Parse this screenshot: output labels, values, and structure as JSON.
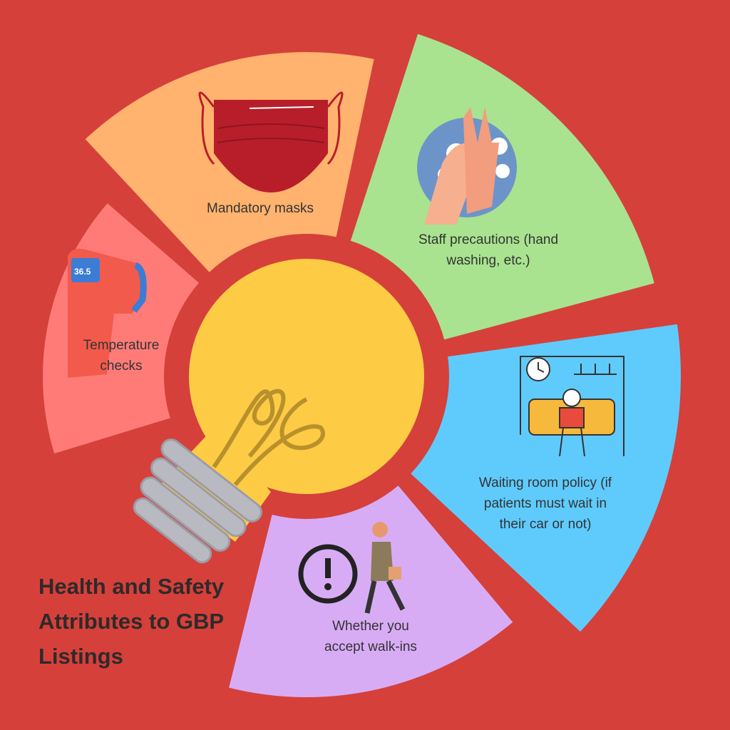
{
  "title_lines": [
    "Health and Safety",
    "Attributes to GBP",
    "Listings"
  ],
  "segments": [
    {
      "id": "temperature",
      "label_lines": [
        "Temperature",
        "checks"
      ],
      "color": "#FF7B78",
      "icon": "thermometer-gun-icon",
      "thermometer_reading": "36.5"
    },
    {
      "id": "masks",
      "label_lines": [
        "Mandatory masks"
      ],
      "color": "#FFB36E",
      "icon": "face-mask-icon"
    },
    {
      "id": "staff",
      "label_lines": [
        "Staff precautions (hand",
        "washing, etc.)"
      ],
      "color": "#A9E38F",
      "icon": "hand-washing-icon"
    },
    {
      "id": "waiting",
      "label_lines": [
        "Waiting room policy (if",
        "patients must wait in",
        "their car or not)"
      ],
      "color": "#5FCBFD",
      "icon": "waiting-room-icon"
    },
    {
      "id": "walkins",
      "label_lines": [
        "Whether you",
        "accept walk-ins"
      ],
      "color": "#D8ACF5",
      "icon": "walk-in-person-icon"
    }
  ],
  "colors": {
    "background": "#D5403B",
    "bulb": "#FECB45",
    "bulb_base": "#B9B9C2"
  }
}
